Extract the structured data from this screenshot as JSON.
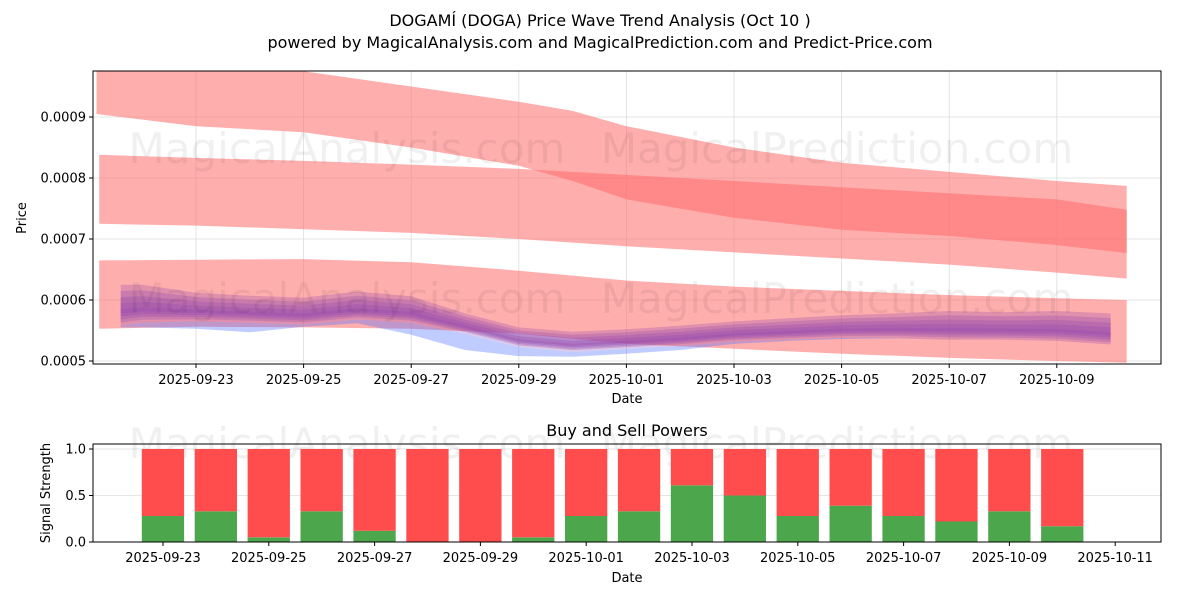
{
  "title": "DOGAMÍ (DOGA) Price Wave Trend Analysis (Oct 10 )",
  "subtitle": "powered by MagicalAnalysis.com and MagicalPrediction.com and Predict-Price.com",
  "watermarks": [
    "MagicalAnalysis.com",
    "MagicalPrediction.com"
  ],
  "colors": {
    "band": "#ff6b6b",
    "band_dark": "#ff7070",
    "wave": "#8e44ad",
    "wave_low": "#4a6cff",
    "buy": "#4ca64c",
    "sell": "#ff4c4c",
    "grid": "#dddddd"
  },
  "chart_data": [
    {
      "type": "area",
      "title": "",
      "xlabel": "Date",
      "ylabel": "Price",
      "ylim": [
        0.000497,
        0.000975
      ],
      "xlim": [
        "2025-09-21.0",
        "2025-10-10.9"
      ],
      "grid": true,
      "yticks": [
        "0.0005",
        "0.0006",
        "0.0007",
        "0.0008",
        "0.0009"
      ],
      "xticks": [
        "2025-09-23",
        "2025-09-25",
        "2025-09-27",
        "2025-09-29",
        "2025-10-01",
        "2025-10-03",
        "2025-10-05",
        "2025-10-07",
        "2025-10-09"
      ],
      "bands": [
        {
          "name": "upper-band",
          "x": [
            0.15,
            2,
            4,
            6,
            8,
            9,
            10,
            12,
            14,
            16,
            18,
            19.3
          ],
          "upper": [
            0.00098,
            0.00098,
            0.000975,
            0.00095,
            0.000925,
            0.00091,
            0.000885,
            0.00085,
            0.000825,
            0.00081,
            0.000795,
            0.000787
          ],
          "lower": [
            0.000905,
            0.000885,
            0.000875,
            0.00085,
            0.00082,
            0.000795,
            0.000765,
            0.000735,
            0.000715,
            0.000705,
            0.00069,
            0.000677
          ]
        },
        {
          "name": "middle-band",
          "x": [
            0.2,
            2,
            4,
            6,
            8,
            10,
            12,
            14,
            16,
            18,
            19.3
          ],
          "upper": [
            0.000838,
            0.000833,
            0.000828,
            0.000822,
            0.000815,
            0.000805,
            0.000795,
            0.000785,
            0.000775,
            0.000765,
            0.000748
          ],
          "lower": [
            0.000725,
            0.000722,
            0.000716,
            0.00071,
            0.0007,
            0.000688,
            0.000678,
            0.000668,
            0.000658,
            0.000645,
            0.000635
          ]
        },
        {
          "name": "lower-band",
          "x": [
            0.2,
            2,
            4,
            6,
            8,
            10,
            12,
            14,
            16,
            18,
            19.3
          ],
          "upper": [
            0.000665,
            0.000666,
            0.000667,
            0.000662,
            0.000648,
            0.000632,
            0.000622,
            0.000615,
            0.000608,
            0.000603,
            0.0006
          ],
          "lower": [
            0.000553,
            0.000556,
            0.000555,
            0.000553,
            0.000545,
            0.000528,
            0.00052,
            0.000512,
            0.000505,
            0.0005,
            0.000497
          ]
        }
      ],
      "wave": {
        "x": [
          0.6,
          1,
          2,
          3,
          4,
          5,
          6,
          7,
          8,
          9,
          10,
          11,
          12,
          13,
          14,
          15,
          16,
          17,
          18,
          19
        ],
        "upper": [
          0.000625,
          0.000625,
          0.000612,
          0.000607,
          0.000604,
          0.000614,
          0.000606,
          0.000578,
          0.000555,
          0.000548,
          0.000552,
          0.000558,
          0.000565,
          0.00057,
          0.000575,
          0.000578,
          0.000582,
          0.00058,
          0.000582,
          0.000578
        ],
        "lower": [
          0.000558,
          0.000563,
          0.000565,
          0.000563,
          0.00056,
          0.000568,
          0.000563,
          0.000545,
          0.000523,
          0.000515,
          0.00052,
          0.000525,
          0.000532,
          0.000535,
          0.000538,
          0.000538,
          0.000535,
          0.000535,
          0.000533,
          0.000527
        ],
        "blue_low": [
          0.000555,
          0.000555,
          0.000553,
          0.000547,
          0.000556,
          0.000562,
          0.000543,
          0.000518,
          0.000508,
          0.000507,
          0.000512,
          0.000518,
          0.000528,
          0.000533,
          0.000536,
          0.000537,
          0.000535,
          0.000535,
          0.000533,
          0.000527
        ]
      }
    },
    {
      "type": "bar",
      "title": "Buy and Sell Powers",
      "xlabel": "Date",
      "ylabel": "Signal Strength",
      "ylim": [
        0,
        1.05
      ],
      "yticks": [
        "0.0",
        "0.5",
        "1.0"
      ],
      "xticks": [
        "2025-09-23",
        "2025-09-25",
        "2025-09-27",
        "2025-09-29",
        "2025-10-01",
        "2025-10-03",
        "2025-10-05",
        "2025-10-07",
        "2025-10-09",
        "2025-10-11"
      ],
      "categories": [
        "2025-09-23",
        "2025-09-24",
        "2025-09-25",
        "2025-09-26",
        "2025-09-27",
        "2025-09-28",
        "2025-09-29",
        "2025-09-30",
        "2025-10-01",
        "2025-10-02",
        "2025-10-03",
        "2025-10-04",
        "2025-10-05",
        "2025-10-06",
        "2025-10-07",
        "2025-10-08",
        "2025-10-09",
        "2025-10-10"
      ],
      "series": [
        {
          "name": "Buy",
          "values": [
            0.28,
            0.33,
            0.05,
            0.33,
            0.12,
            0.0,
            0.0,
            0.05,
            0.28,
            0.33,
            0.61,
            0.5,
            0.28,
            0.39,
            0.28,
            0.22,
            0.33,
            0.17
          ]
        },
        {
          "name": "Sell",
          "values": [
            0.72,
            0.67,
            0.95,
            0.67,
            0.88,
            1.0,
            1.0,
            0.95,
            0.72,
            0.67,
            0.39,
            0.5,
            0.72,
            0.61,
            0.72,
            0.78,
            0.67,
            0.83
          ]
        }
      ]
    }
  ]
}
